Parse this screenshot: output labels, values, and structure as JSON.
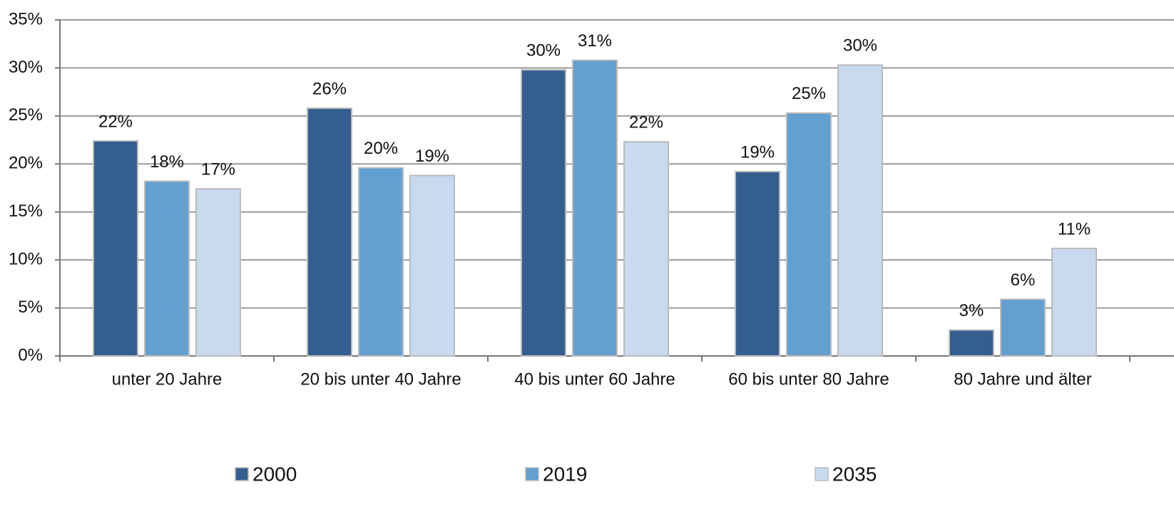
{
  "chart_data": {
    "type": "bar",
    "categories": [
      "unter 20 Jahre",
      "20 bis unter 40 Jahre",
      "40 bis unter 60 Jahre",
      "60 bis unter 80 Jahre",
      "80 Jahre und älter"
    ],
    "series": [
      {
        "name": "2000",
        "color": "#345e8e",
        "values": [
          22.4,
          25.8,
          29.8,
          19.2,
          2.7
        ],
        "value_labels": [
          "22%",
          "26%",
          "30%",
          "19%",
          "3%"
        ]
      },
      {
        "name": "2019",
        "color": "#62a0d2",
        "values": [
          18.2,
          19.6,
          30.8,
          25.3,
          5.9
        ],
        "value_labels": [
          "18%",
          "20%",
          "31%",
          "25%",
          "6%"
        ]
      },
      {
        "name": "2035",
        "color": "#c8d9f0",
        "values": [
          17.4,
          18.8,
          22.3,
          30.3,
          11.2
        ],
        "value_labels": [
          "17%",
          "19%",
          "22%",
          "30%",
          "11%"
        ]
      }
    ],
    "ylim": [
      0,
      35
    ],
    "yticks": [
      {
        "value": 0,
        "label": "0%"
      },
      {
        "value": 5,
        "label": "5%"
      },
      {
        "value": 10,
        "label": "10%"
      },
      {
        "value": 15,
        "label": "15%"
      },
      {
        "value": 20,
        "label": "20%"
      },
      {
        "value": 25,
        "label": "25%"
      },
      {
        "value": 30,
        "label": "30%"
      },
      {
        "value": 35,
        "label": "35%"
      }
    ],
    "grid": true,
    "legend": "bottom"
  }
}
